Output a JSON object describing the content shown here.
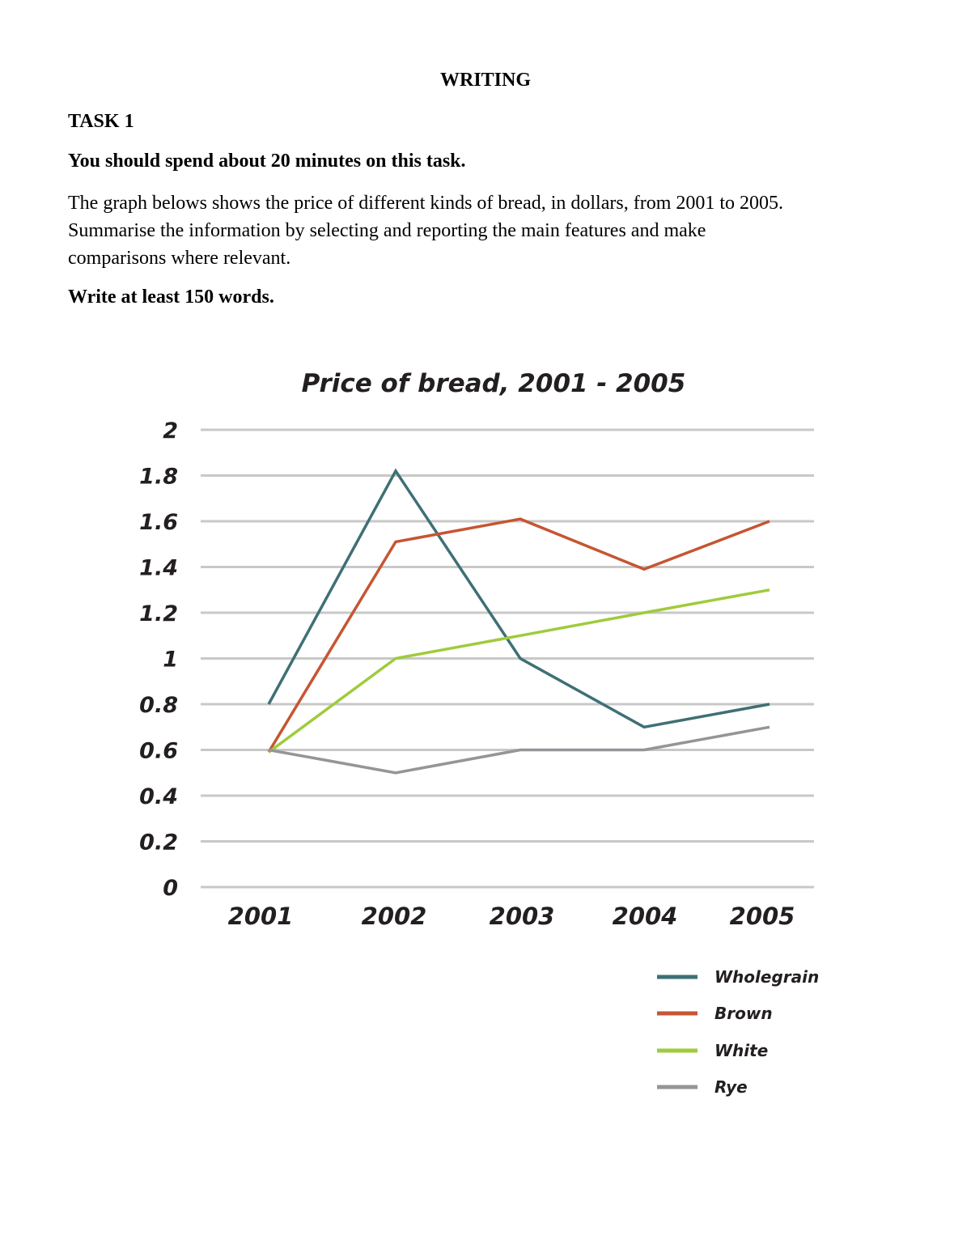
{
  "document": {
    "heading": "WRITING",
    "task": "TASK 1",
    "time_instruction": "You should spend about 20 minutes on this task.",
    "prompt_lines": [
      "The graph belows shows the price of different kinds of bread, in dollars, from 2001 to 2005.",
      "Summarise the information by selecting and reporting the main features and make",
      "comparisons where relevant."
    ],
    "word_instruction": "Write at least 150 words."
  },
  "chart_data": {
    "type": "line",
    "title": "Price of bread, 2001 - 2005",
    "x": [
      "2001",
      "2002",
      "2003",
      "2004",
      "2005"
    ],
    "ylim": [
      0,
      2
    ],
    "yticks": [
      "0",
      "0.2",
      "0.4",
      "0.6",
      "0.8",
      "1",
      "1.2",
      "1.4",
      "1.6",
      "1.8",
      "2"
    ],
    "grid": true,
    "legend_position": "bottom-right",
    "series": [
      {
        "name": "Wholegrain",
        "color": "#3e7075",
        "values": [
          0.8,
          1.82,
          1.0,
          0.7,
          0.8
        ]
      },
      {
        "name": "Brown",
        "color": "#c65532",
        "values": [
          0.59,
          1.51,
          1.61,
          1.39,
          1.6
        ]
      },
      {
        "name": "White",
        "color": "#9fcb3c",
        "values": [
          0.59,
          1.0,
          1.1,
          1.2,
          1.3
        ]
      },
      {
        "name": "Rye",
        "color": "#939598",
        "values": [
          0.6,
          0.5,
          0.6,
          0.6,
          0.7
        ]
      }
    ]
  }
}
